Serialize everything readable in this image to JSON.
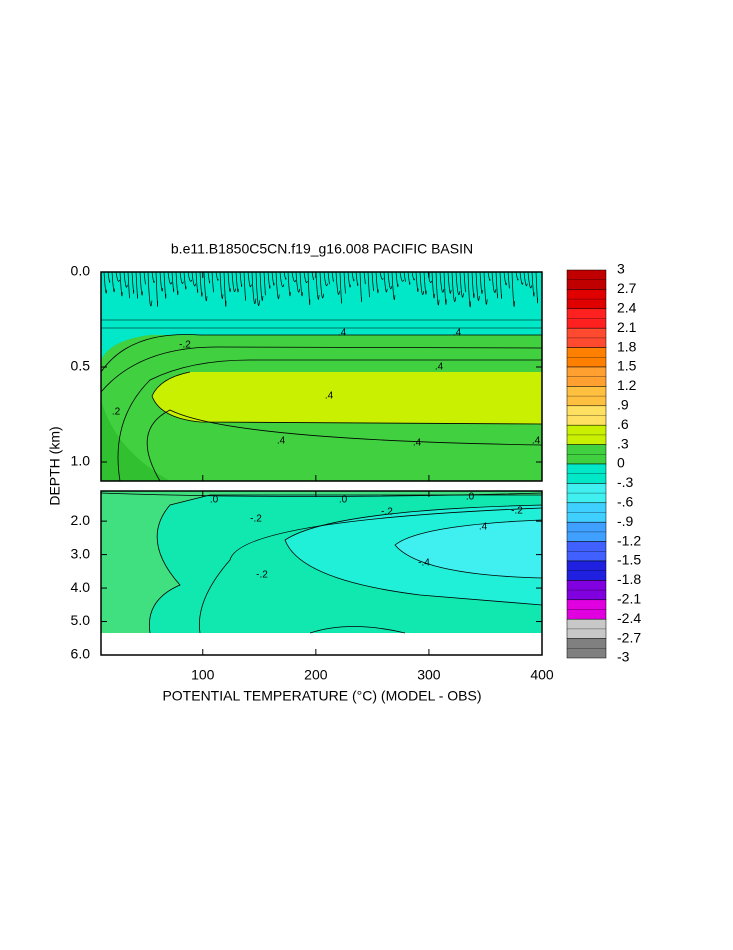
{
  "chart_data": {
    "type": "contour",
    "title": "b.e11.B1850C5CN.f19_g16.008 PACIFIC BASIN",
    "x_label": "POTENTIAL TEMPERATURE (°C) (MODEL - OBS)",
    "y_label": "DEPTH (km)",
    "xlim": [
      10,
      400
    ],
    "xticks": [
      100,
      200,
      300,
      400
    ],
    "panels": [
      {
        "ylim": [
          0,
          1.1
        ],
        "yticks": [
          {
            "value": 0,
            "label": "0.0"
          },
          {
            "value": 0.5,
            "label": "0.5"
          },
          {
            "value": 1,
            "label": "1.0"
          }
        ],
        "contour_labels": [
          {
            "value": 0.2,
            "label": ".2"
          },
          {
            "value": -0.2,
            "label": "-.2"
          },
          {
            "value": 0.4,
            "label": ".4"
          },
          {
            "value": 0.4,
            "label": ".4"
          },
          {
            "value": 0.4,
            "label": ".4"
          },
          {
            "value": 0.4,
            "label": ".4"
          },
          {
            "value": 0.4,
            "label": ".4"
          },
          {
            "value": 0.4,
            "label": ".4"
          },
          {
            "value": 0.4,
            "label": ".4"
          }
        ]
      },
      {
        "ylim": [
          1.1,
          6.0
        ],
        "yticks": [
          {
            "value": 2,
            "label": "2.0"
          },
          {
            "value": 3,
            "label": "3.0"
          },
          {
            "value": 4,
            "label": "4.0"
          },
          {
            "value": 5,
            "label": "5.0"
          },
          {
            "value": 6,
            "label": "6.0"
          }
        ],
        "contour_labels": [
          {
            "value": 0,
            "label": ".0"
          },
          {
            "value": 0,
            "label": ".0"
          },
          {
            "value": 0,
            "label": ".0"
          },
          {
            "value": -0.2,
            "label": "-.2"
          },
          {
            "value": -0.2,
            "label": "-.2"
          },
          {
            "value": -0.2,
            "label": "-.2"
          },
          {
            "value": 0.4,
            "label": ".4"
          },
          {
            "value": -0.4,
            "label": "-.4"
          },
          {
            "value": -0.2,
            "label": "-.2"
          }
        ]
      }
    ],
    "colorbar": {
      "levels": [
        3,
        2.7,
        2.4,
        2.1,
        1.8,
        1.5,
        1.2,
        {
          "value": 0.9,
          "label": ".9"
        },
        {
          "value": 0.6,
          "label": ".6"
        },
        {
          "value": 0.3,
          "label": ".3"
        },
        0,
        {
          "value": -0.3,
          "label": "-.3"
        },
        {
          "value": -0.6,
          "label": "-.6"
        },
        {
          "value": -0.9,
          "label": "-.9"
        },
        -1.2,
        -1.5,
        -1.8,
        -2.1,
        -2.4,
        -2.7,
        -3
      ],
      "colors": [
        "#c00000",
        "#e00000",
        "#ff2020",
        "#ff4a30",
        "#ff8000",
        "#ffa030",
        "#ffc040",
        "#ffe060",
        "#c8f000",
        "#40d040",
        "#00e8c8",
        "#40f0f0",
        "#40d0ff",
        "#40a0ff",
        "#4060ff",
        "#2020e0",
        "#8000e0",
        "#e000e0",
        "#c8c8c8",
        "#808080"
      ]
    }
  }
}
